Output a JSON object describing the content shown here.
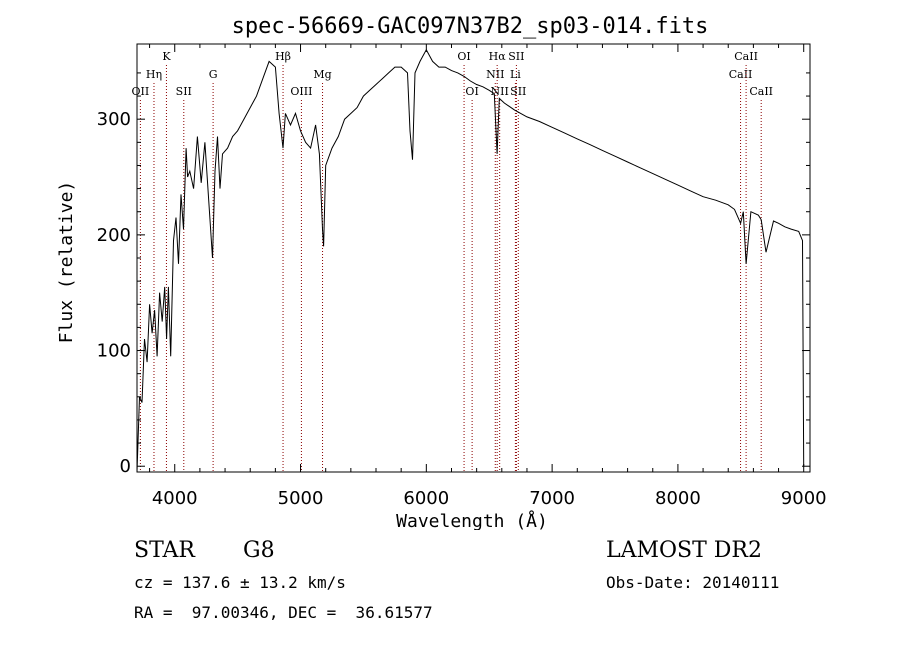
{
  "chart_data": {
    "type": "line",
    "title": "spec-56669-GAC097N37B2_sp03-014.fits",
    "xlabel": "Wavelength (Å)",
    "ylabel": "Flux (relative)",
    "xlim": [
      3700,
      9050
    ],
    "ylim": [
      -5,
      365
    ],
    "xticks": [
      4000,
      5000,
      6000,
      7000,
      8000,
      9000
    ],
    "yticks": [
      0,
      100,
      200,
      300
    ],
    "series": [
      {
        "color": "#000000",
        "x": [
          3700,
          3720,
          3740,
          3760,
          3780,
          3800,
          3820,
          3840,
          3860,
          3880,
          3900,
          3920,
          3935,
          3950,
          3968,
          3990,
          4010,
          4030,
          4050,
          4070,
          4090,
          4102,
          4120,
          4150,
          4180,
          4210,
          4240,
          4270,
          4300,
          4320,
          4340,
          4360,
          4380,
          4420,
          4460,
          4500,
          4550,
          4600,
          4650,
          4700,
          4750,
          4800,
          4830,
          4861,
          4880,
          4920,
          4960,
          5000,
          5040,
          5080,
          5120,
          5150,
          5175,
          5183,
          5200,
          5250,
          5300,
          5350,
          5400,
          5450,
          5500,
          5550,
          5600,
          5650,
          5700,
          5750,
          5800,
          5850,
          5870,
          5890,
          5896,
          5910,
          5950,
          6000,
          6050,
          6100,
          6150,
          6200,
          6250,
          6300,
          6350,
          6400,
          6450,
          6500,
          6540,
          6563,
          6580,
          6620,
          6700,
          6800,
          6900,
          7000,
          7100,
          7200,
          7300,
          7400,
          7500,
          7600,
          7700,
          7800,
          7900,
          8000,
          8100,
          8200,
          8300,
          8400,
          8450,
          8498,
          8520,
          8542,
          8580,
          8640,
          8662,
          8700,
          8760,
          8800,
          8850,
          8900,
          8960,
          8990,
          9000
        ],
        "y": [
          -5,
          60,
          55,
          110,
          90,
          140,
          115,
          135,
          95,
          150,
          125,
          155,
          110,
          155,
          95,
          195,
          215,
          175,
          235,
          205,
          275,
          250,
          255,
          240,
          285,
          245,
          280,
          230,
          180,
          255,
          285,
          240,
          270,
          275,
          285,
          290,
          300,
          310,
          320,
          335,
          350,
          345,
          305,
          275,
          305,
          295,
          305,
          290,
          280,
          275,
          295,
          270,
          205,
          190,
          260,
          275,
          285,
          300,
          305,
          310,
          320,
          325,
          330,
          335,
          340,
          345,
          345,
          340,
          290,
          265,
          285,
          340,
          350,
          360,
          350,
          345,
          345,
          342,
          340,
          337,
          333,
          330,
          328,
          325,
          322,
          270,
          318,
          314,
          308,
          302,
          298,
          293,
          288,
          283,
          278,
          273,
          268,
          263,
          258,
          253,
          248,
          243,
          238,
          233,
          230,
          226,
          222,
          210,
          220,
          175,
          220,
          217,
          213,
          185,
          212,
          210,
          207,
          205,
          203,
          195,
          0
        ]
      }
    ],
    "lines": [
      {
        "label": "OII",
        "x": 3727,
        "tier": 3
      },
      {
        "label": "Hη",
        "x": 3835,
        "tier": 2
      },
      {
        "label": "K",
        "x": 3934,
        "tier": 1
      },
      {
        "label": "SII",
        "x": 4072,
        "tier": 3
      },
      {
        "label": "G",
        "x": 4305,
        "tier": 2
      },
      {
        "label": "Hβ",
        "x": 4861,
        "tier": 1
      },
      {
        "label": "OIII",
        "x": 5007,
        "tier": 3
      },
      {
        "label": "Mg",
        "x": 5175,
        "tier": 2
      },
      {
        "label": "OI",
        "x": 6300,
        "tier": 1
      },
      {
        "label": "OI",
        "x": 6364,
        "tier": 3
      },
      {
        "label": "NII",
        "x": 6548,
        "tier": 2
      },
      {
        "label": "Hα",
        "x": 6563,
        "tier": 1
      },
      {
        "label": "NII",
        "x": 6583,
        "tier": 3
      },
      {
        "label": "SII",
        "x": 6716,
        "tier": 1
      },
      {
        "label": "Li",
        "x": 6708,
        "tier": 2
      },
      {
        "label": "SII",
        "x": 6731,
        "tier": 3
      },
      {
        "label": "CaII",
        "x": 8498,
        "tier": 2
      },
      {
        "label": "CaII",
        "x": 8542,
        "tier": 1
      },
      {
        "label": "CaII",
        "x": 8662,
        "tier": 3
      }
    ]
  },
  "info": {
    "class": "STAR",
    "subclass": "G8",
    "survey": "LAMOST DR2",
    "cz": "cz = 137.6 ± 13.2 km/s",
    "obsdate": "Obs-Date: 20140111",
    "radec": "RA =  97.00346, DEC =  36.61577"
  },
  "colors": {
    "spectrum": "#000000",
    "line_markers": "#8b0000"
  }
}
